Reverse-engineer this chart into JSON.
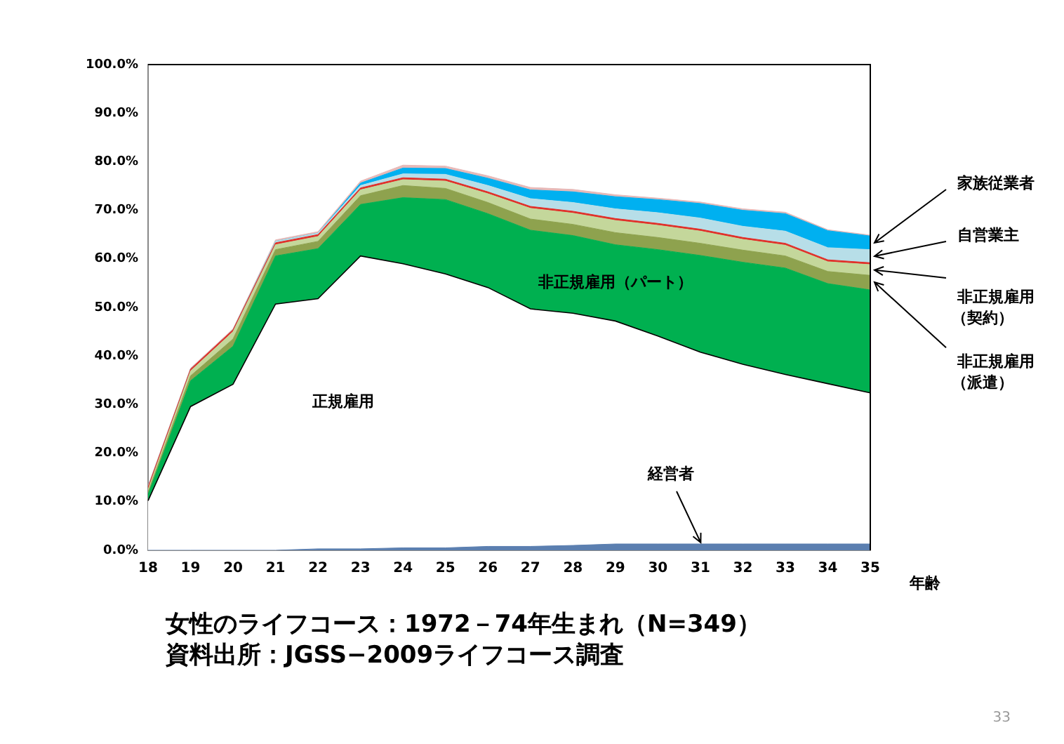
{
  "chart_data": {
    "type": "area",
    "stacked": true,
    "title": "女性のライフコース：1972－74年生まれ（N=349）",
    "xlabel": "年齢",
    "annotations": [
      "資料出所：JGSS−2009ライフコース調査",
      "33"
    ],
    "categories": [
      "18",
      "19",
      "20",
      "21",
      "22",
      "23",
      "24",
      "25",
      "26",
      "27",
      "28",
      "29",
      "30",
      "31",
      "32",
      "33",
      "34",
      "35"
    ],
    "ylim": [
      0,
      100
    ],
    "yticks": [
      {
        "value": 0,
        "label": "0.0%"
      },
      {
        "value": 10,
        "label": "10.0%"
      },
      {
        "value": 20,
        "label": "20.0%"
      },
      {
        "value": 30,
        "label": "30.0%"
      },
      {
        "value": 40,
        "label": "40.0%"
      },
      {
        "value": 50,
        "label": "50.0%"
      },
      {
        "value": 60,
        "label": "60.0%"
      },
      {
        "value": 70,
        "label": "70.0%"
      },
      {
        "value": 80,
        "label": "80.0%"
      },
      {
        "value": 90,
        "label": "90.0%"
      },
      {
        "value": 100,
        "label": "100.0%"
      }
    ],
    "grid": false,
    "legend": false,
    "marker": "none",
    "series": [
      {
        "name": "経営者",
        "color": "#5b7fb0",
        "values": [
          0,
          0,
          0,
          0,
          0.3,
          0.3,
          0.5,
          0.5,
          0.8,
          0.8,
          1.0,
          1.3,
          1.3,
          1.3,
          1.3,
          1.3,
          1.3,
          1.3
        ]
      },
      {
        "name": "正規雇用",
        "color": "#ffffff",
        "values": [
          10.2,
          29.6,
          34.2,
          50.7,
          51.5,
          60.3,
          58.5,
          56.4,
          53.3,
          48.9,
          47.8,
          45.9,
          42.8,
          39.5,
          37.0,
          34.9,
          33.0,
          31.1
        ]
      },
      {
        "name": "非正規雇用（パート）",
        "color": "#00b050",
        "values": [
          1.3,
          5.3,
          7.8,
          9.9,
          10.3,
          10.6,
          13.6,
          15.3,
          15.2,
          16.2,
          16.0,
          15.7,
          17.8,
          19.9,
          21.0,
          21.9,
          20.6,
          21.2
        ]
      },
      {
        "name": "非正規雇用（派遣）",
        "color": "#8ea24e",
        "values": [
          0.5,
          1.0,
          1.5,
          1.3,
          1.5,
          1.8,
          2.5,
          2.3,
          2.3,
          2.3,
          2.3,
          2.5,
          2.5,
          2.5,
          2.5,
          2.5,
          2.5,
          3.0
        ]
      },
      {
        "name": "非正規雇用（契約）",
        "color": "#c4d79b",
        "values": [
          0.5,
          1.0,
          1.5,
          1.0,
          1.0,
          1.2,
          1.2,
          1.5,
          1.8,
          2.2,
          2.3,
          2.5,
          2.5,
          2.5,
          2.2,
          2.2,
          2.0,
          2.2
        ]
      },
      {
        "color": "#e0302a",
        "values": [
          0.5,
          0.4,
          0.4,
          0.4,
          0.4,
          0.4,
          0.4,
          0.4,
          0.4,
          0.4,
          0.4,
          0.4,
          0.4,
          0.4,
          0.4,
          0.4,
          0.4,
          0.4
        ]
      },
      {
        "name": "自営業主",
        "color": "#b7dee8",
        "values": [
          0,
          0,
          0,
          0.3,
          0.3,
          0.5,
          0.8,
          1.0,
          1.3,
          1.6,
          1.8,
          2.0,
          2.2,
          2.3,
          2.3,
          2.5,
          2.5,
          2.7
        ]
      },
      {
        "name": "家族従業者",
        "color": "#00b0f0",
        "values": [
          0,
          0,
          0,
          0,
          0,
          0.5,
          1.2,
          1.2,
          1.5,
          1.8,
          2.2,
          2.5,
          2.7,
          3.0,
          3.3,
          3.6,
          3.5,
          2.8
        ]
      },
      {
        "color": "#e6b9b8",
        "values": [
          0.3,
          0.2,
          0.2,
          0.3,
          0.3,
          0.4,
          0.6,
          0.5,
          0.5,
          0.5,
          0.5,
          0.4,
          0.3,
          0.3,
          0.3,
          0.3,
          0.2,
          0.2
        ]
      }
    ]
  }
}
